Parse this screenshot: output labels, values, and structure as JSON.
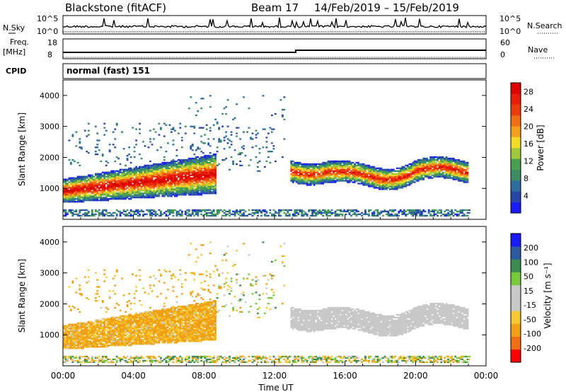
{
  "header": {
    "station": "Blackstone (fitACF)",
    "beam": "Beam 17",
    "dates": "14/Feb/2019 – 15/Feb/2019"
  },
  "status_panels": {
    "nsky_label": "N.Sky",
    "nsearch_label": "N.Search",
    "noise_top_tick": "10^5",
    "noise_bottom_tick": "10^0",
    "freq_label": "Freq.",
    "freq_unit": "[MHz]",
    "freq_ticks": [
      "18",
      "8"
    ],
    "nave_label": "Nave",
    "nave_ticks": [
      "60",
      "0"
    ],
    "cpid_label": "CPID",
    "cpid_value": "normal (fast) 151"
  },
  "colors": {
    "power_scale": [
      "#1a1aff",
      "#2846a8",
      "#2d6e9e",
      "#3c8c64",
      "#46a050",
      "#a0c83c",
      "#f0dc28",
      "#f5a01e",
      "#f06e14",
      "#eb3c0f",
      "#e61e0a",
      "#dc0000"
    ],
    "velocity_scale": [
      "#ff0000",
      "#f06e14",
      "#f0a014",
      "#f5c832",
      "#c8c8c8",
      "#c8c8c8",
      "#78c83c",
      "#3c8c50",
      "#2d5aa0",
      "#1a1aff"
    ]
  },
  "chart_data": [
    {
      "type": "heatmap",
      "name": "power",
      "ylabel": "Slant Range [km]",
      "yticks": [
        1000,
        2000,
        3000,
        4000
      ],
      "ylim": [
        0,
        4500
      ],
      "xlim": [
        0,
        24
      ],
      "xlabel": "Time UT",
      "xticks": [
        "00:00",
        "04:00",
        "08:00",
        "12:00",
        "16:00",
        "20:00",
        "00:00"
      ],
      "colorbar_label": "Power [dB]",
      "colorbar_ticks": [
        4,
        8,
        12,
        16,
        20,
        24,
        28
      ],
      "colorbar_range": [
        0,
        30
      ],
      "features": [
        {
          "region": "main E-region band",
          "x": [
            0,
            8.5
          ],
          "range_center_start": 900,
          "range_center_end": 1450,
          "power_dB": 28
        },
        {
          "region": "post-noon band",
          "x": [
            12.8,
            23
          ],
          "range_center_start": 1450,
          "range_center_end": 1500,
          "power_dB": 24
        },
        {
          "region": "scattered high range",
          "x": [
            0,
            12
          ],
          "range": [
            1800,
            3000
          ],
          "power_dB": 6
        }
      ]
    },
    {
      "type": "heatmap",
      "name": "velocity",
      "ylabel": "Slant Range [km]",
      "yticks": [
        1000,
        2000,
        3000,
        4000
      ],
      "ylim": [
        0,
        4500
      ],
      "xlim": [
        0,
        24
      ],
      "xlabel": "Time UT",
      "xticks": [
        "00:00",
        "04:00",
        "08:00",
        "12:00",
        "16:00",
        "20:00",
        "00:00"
      ],
      "colorbar_label": "Velocity [m s^-1]",
      "colorbar_ticks": [
        200,
        100,
        50,
        15,
        -15,
        -50,
        -100,
        -200
      ],
      "features": [
        {
          "region": "main band",
          "x": [
            0,
            8.5
          ],
          "velocity_mps": -50
        },
        {
          "region": "post-noon band",
          "x": [
            12.8,
            23
          ],
          "velocity_mps": 0
        }
      ]
    }
  ],
  "text": {
    "cbar_power_title": "Power [dB]",
    "cbar_velocity_title": "Velocity [m s⁻¹]"
  }
}
